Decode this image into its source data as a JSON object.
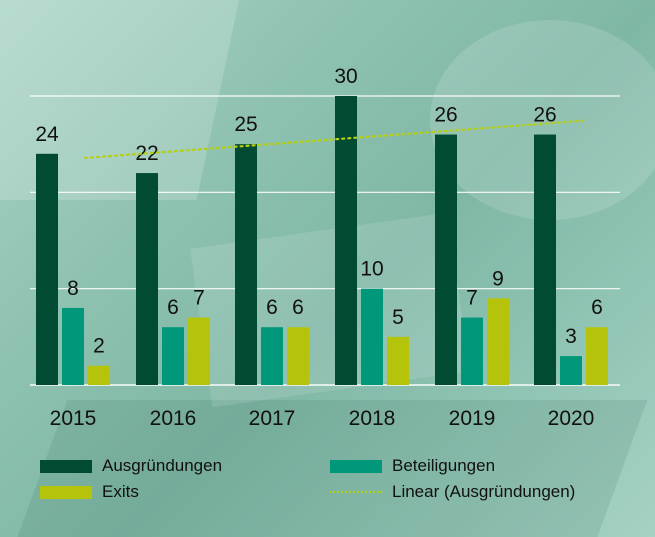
{
  "colors": {
    "ausgruendungen": "#004b32",
    "beteiligungen": "#00977a",
    "exits": "#b5c40a",
    "trend": "#b6cf10",
    "gridline": "#ffffff"
  },
  "chart_data": {
    "type": "bar",
    "categories": [
      "2015",
      "2016",
      "2017",
      "2018",
      "2019",
      "2020"
    ],
    "series": [
      {
        "name": "Ausgründungen",
        "values": [
          24,
          22,
          25,
          30,
          26,
          26
        ]
      },
      {
        "name": "Beteiligungen",
        "values": [
          8,
          6,
          6,
          10,
          7,
          3
        ]
      },
      {
        "name": "Exits",
        "values": [
          2,
          7,
          6,
          5,
          9,
          6
        ]
      }
    ],
    "trendline": {
      "name": "Linear (Ausgründungen)",
      "type": "linear",
      "of": "Ausgründungen"
    },
    "ylim": [
      0,
      30
    ],
    "grid": true,
    "legend_position": "bottom"
  },
  "legend": [
    {
      "label": "Ausgründungen",
      "kind": "swatch",
      "color_key": "ausgruendungen"
    },
    {
      "label": "Beteiligungen",
      "kind": "swatch",
      "color_key": "beteiligungen"
    },
    {
      "label": "Exits",
      "kind": "swatch",
      "color_key": "exits"
    },
    {
      "label": "Linear (Ausgründungen)",
      "kind": "dotted-line",
      "color_key": "trend"
    }
  ]
}
